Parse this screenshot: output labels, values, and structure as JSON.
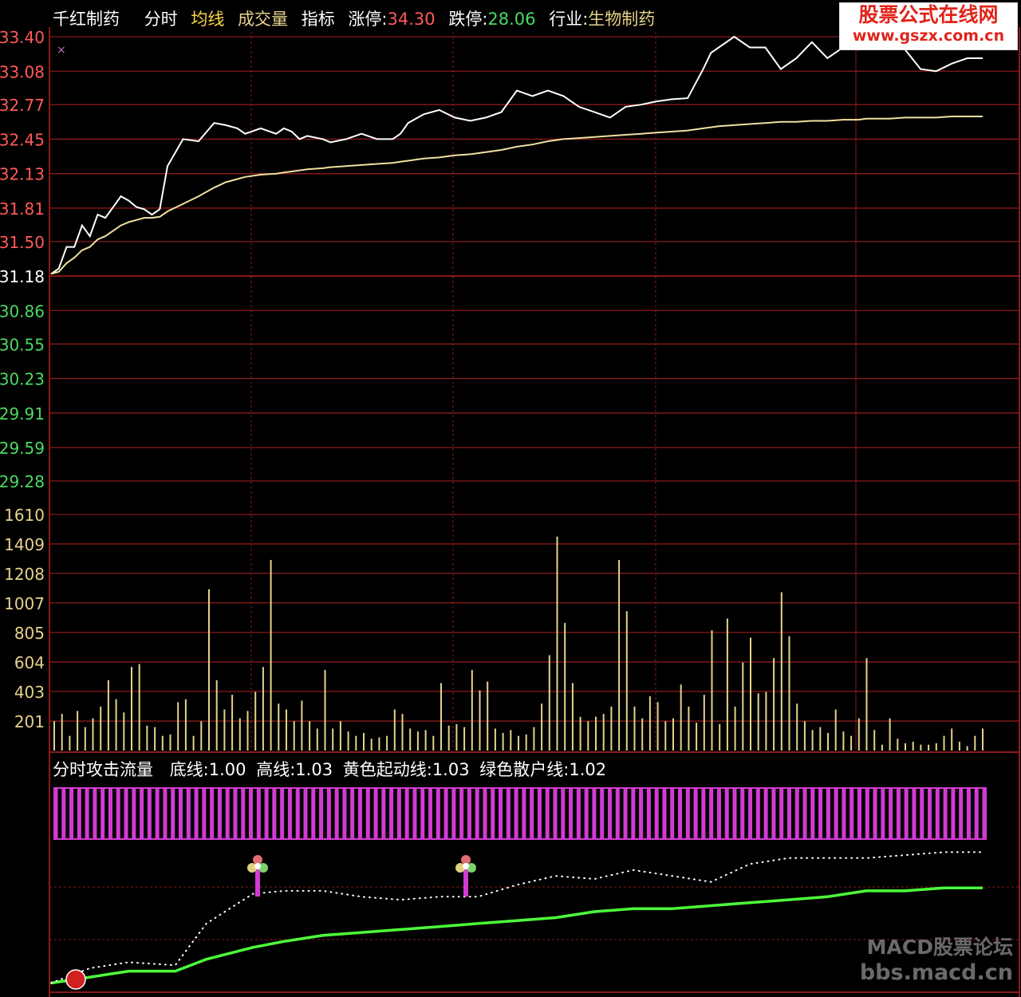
{
  "header": {
    "stock_name": "千红制药",
    "tab_intraday": "分时",
    "tab_avg": "均线",
    "tab_volume": "成交量",
    "tab_indicator": "指标",
    "limit_up_label": "涨停:",
    "limit_up_value": "34.30",
    "limit_down_label": "跌停:",
    "limit_down_value": "28.06",
    "industry_label": "行业:",
    "industry_value": "生物制药"
  },
  "indicator_panel": {
    "title": "分时攻击流量",
    "base_line": "底线:1.00",
    "high_line": "高线:1.03",
    "yellow_line": "黄色起动线:1.03",
    "green_line": "绿色散户线:1.02"
  },
  "watermarks": {
    "top_line1": "股票公式在线网",
    "top_line2": "www.gszx.com.cn",
    "bottom_line1": "MACD股票论坛",
    "bottom_line2": "bbs.macd.cn"
  },
  "colors": {
    "price_line": "#ffffff",
    "avg_line": "#f0e0a0",
    "volume_bar": "#e6d28c",
    "grid": "#8b1a1a",
    "up_label": "#ff5a5a",
    "down_label": "#4cd964",
    "magenta": "#d33ad3",
    "green_line": "#4cff3a"
  },
  "chart_data": [
    {
      "type": "line",
      "panel": "price",
      "y_ticks_up": [
        "33.40",
        "33.08",
        "32.77",
        "32.45",
        "32.13",
        "31.81",
        "31.50"
      ],
      "y_tick_mid": "31.18",
      "y_ticks_down": [
        "30.86",
        "30.55",
        "30.23",
        "29.91",
        "29.59",
        "29.28"
      ],
      "ylim": [
        29.28,
        33.4
      ],
      "x": [
        0,
        2,
        4,
        6,
        8,
        10,
        12,
        14,
        16,
        18,
        20,
        22,
        24,
        26,
        28,
        30,
        34,
        38,
        42,
        45,
        48,
        50,
        54,
        58,
        60,
        62,
        64,
        66,
        70,
        72,
        76,
        80,
        84,
        88,
        90,
        92,
        96,
        100,
        104,
        108,
        112,
        116,
        120,
        124,
        128,
        132,
        136,
        140,
        144,
        148,
        152,
        156,
        160,
        164,
        168,
        170,
        172,
        176,
        180,
        184,
        188,
        192,
        196,
        200,
        204,
        208,
        210,
        212,
        216,
        220,
        224,
        228,
        232,
        236,
        240
      ],
      "series": [
        {
          "values": [
            31.2,
            31.25,
            31.45,
            31.45,
            31.65,
            31.55,
            31.75,
            31.72,
            31.82,
            31.92,
            31.88,
            31.82,
            31.8,
            31.75,
            31.8,
            32.2,
            32.45,
            32.43,
            32.6,
            32.58,
            32.55,
            32.5,
            32.55,
            32.5,
            32.55,
            32.52,
            32.45,
            32.48,
            32.45,
            32.42,
            32.45,
            32.5,
            32.45,
            32.45,
            32.5,
            32.6,
            32.68,
            32.72,
            32.65,
            32.62,
            32.65,
            32.7,
            32.9,
            32.85,
            32.9,
            32.85,
            32.75,
            32.7,
            32.65,
            32.75,
            32.77,
            32.8,
            32.82,
            32.83,
            33.1,
            33.25,
            33.3,
            33.4,
            33.3,
            33.3,
            33.1,
            33.2,
            33.35,
            33.2,
            33.3,
            33.28,
            33.3,
            33.3,
            33.32,
            33.28,
            33.1,
            33.08,
            33.15,
            33.2,
            33.2
          ]
        },
        {
          "values": [
            31.2,
            31.22,
            31.3,
            31.35,
            31.42,
            31.45,
            31.52,
            31.55,
            31.6,
            31.65,
            31.68,
            31.7,
            31.72,
            31.72,
            31.73,
            31.78,
            31.85,
            31.92,
            32.0,
            32.05,
            32.08,
            32.1,
            32.12,
            32.13,
            32.14,
            32.15,
            32.16,
            32.17,
            32.18,
            32.19,
            32.2,
            32.21,
            32.22,
            32.23,
            32.24,
            32.25,
            32.27,
            32.28,
            32.3,
            32.31,
            32.33,
            32.35,
            32.38,
            32.4,
            32.43,
            32.45,
            32.46,
            32.47,
            32.48,
            32.49,
            32.5,
            32.51,
            32.52,
            32.53,
            32.55,
            32.56,
            32.57,
            32.58,
            32.59,
            32.6,
            32.61,
            32.61,
            32.62,
            32.62,
            32.63,
            32.63,
            32.64,
            32.64,
            32.64,
            32.65,
            32.65,
            32.65,
            32.66,
            32.66,
            32.66
          ]
        }
      ]
    },
    {
      "type": "bar",
      "panel": "volume",
      "y_ticks": [
        "1610",
        "1409",
        "1208",
        "1007",
        "805",
        "604",
        "403",
        "201"
      ],
      "ylim": [
        0,
        1610
      ],
      "values": [
        200,
        250,
        100,
        270,
        160,
        220,
        300,
        480,
        350,
        260,
        570,
        590,
        170,
        160,
        100,
        110,
        330,
        350,
        100,
        200,
        1100,
        480,
        280,
        380,
        220,
        270,
        400,
        570,
        1300,
        320,
        280,
        200,
        340,
        200,
        150,
        550,
        150,
        200,
        130,
        100,
        120,
        80,
        90,
        100,
        280,
        250,
        150,
        130,
        140,
        100,
        460,
        170,
        180,
        160,
        550,
        410,
        470,
        150,
        120,
        140,
        100,
        110,
        160,
        320,
        650,
        1460,
        870,
        460,
        230,
        200,
        230,
        250,
        300,
        1300,
        950,
        300,
        220,
        370,
        330,
        200,
        220,
        450,
        300,
        190,
        380,
        820,
        180,
        900,
        300,
        600,
        770,
        390,
        400,
        630,
        1080,
        780,
        320,
        200,
        140,
        160,
        120,
        280,
        130,
        100,
        220,
        630,
        140,
        40,
        220,
        80,
        50,
        60,
        40,
        40,
        50,
        100,
        150,
        60,
        30,
        100,
        150
      ]
    },
    {
      "type": "line",
      "panel": "indicator",
      "x": [
        0,
        10,
        20,
        32,
        40,
        52,
        60,
        70,
        80,
        90,
        100,
        110,
        120,
        130,
        140,
        150,
        160,
        170,
        180,
        190,
        200,
        210,
        220,
        230,
        240
      ],
      "series": [
        {
          "values": [
            1.0,
            1.002,
            1.004,
            1.004,
            1.008,
            1.012,
            1.014,
            1.016,
            1.017,
            1.018,
            1.019,
            1.02,
            1.021,
            1.022,
            1.024,
            1.025,
            1.025,
            1.026,
            1.027,
            1.028,
            1.029,
            1.031,
            1.031,
            1.032,
            1.032
          ]
        },
        {
          "values": [
            1.0,
            1.005,
            1.007,
            1.006,
            1.02,
            1.03,
            1.031,
            1.031,
            1.029,
            1.028,
            1.029,
            1.029,
            1.033,
            1.036,
            1.035,
            1.038,
            1.036,
            1.034,
            1.04,
            1.042,
            1.042,
            1.042,
            1.043,
            1.044,
            1.044
          ]
        }
      ],
      "ylim": [
        0.998,
        1.05
      ],
      "signal_bars": 120
    }
  ]
}
